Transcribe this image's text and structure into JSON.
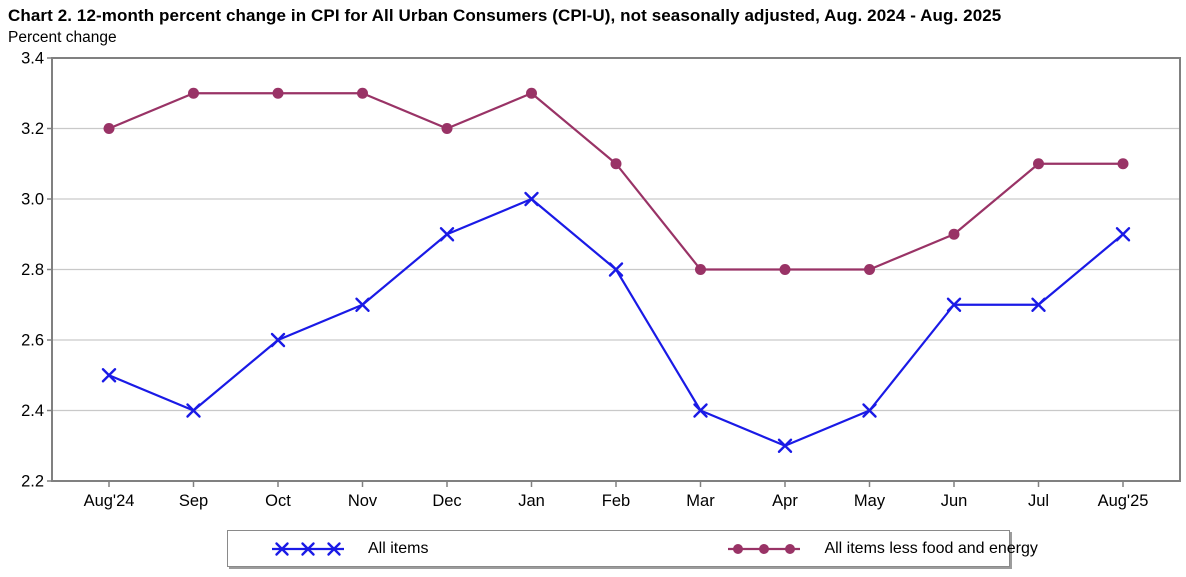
{
  "title": "Chart 2. 12-month percent change in CPI for All Urban Consumers (CPI-U), not seasonally adjusted, Aug. 2024 - Aug. 2025",
  "y_axis_unit": "Percent change",
  "chart_data": {
    "type": "line",
    "categories": [
      "Aug'24",
      "Sep",
      "Oct",
      "Nov",
      "Dec",
      "Jan",
      "Feb",
      "Mar",
      "Apr",
      "May",
      "Jun",
      "Jul",
      "Aug'25"
    ],
    "series": [
      {
        "name": "All items",
        "marker": "x",
        "color": "#1a1ae6",
        "values": [
          2.5,
          2.4,
          2.6,
          2.7,
          2.9,
          3.0,
          2.8,
          2.4,
          2.3,
          2.4,
          2.7,
          2.7,
          2.9
        ]
      },
      {
        "name": "All items less food and energy",
        "marker": "circle",
        "color": "#993366",
        "values": [
          3.2,
          3.3,
          3.3,
          3.3,
          3.2,
          3.3,
          3.1,
          2.8,
          2.8,
          2.8,
          2.9,
          3.1,
          3.1
        ]
      }
    ],
    "title": "Chart 2. 12-month percent change in CPI for All Urban Consumers (CPI-U), not seasonally adjusted, Aug. 2024 - Aug. 2025",
    "xlabel": "",
    "ylabel": "Percent change",
    "ylim": [
      2.2,
      3.4
    ],
    "ytick_labels": [
      "3.4",
      "3.2",
      "3.0",
      "2.8",
      "2.6",
      "2.4",
      "2.2"
    ],
    "ytick_step": 0.2,
    "grid": true,
    "grid_color": "#c9c9c9",
    "frame_color": "#808080",
    "legend_position": "bottom"
  }
}
